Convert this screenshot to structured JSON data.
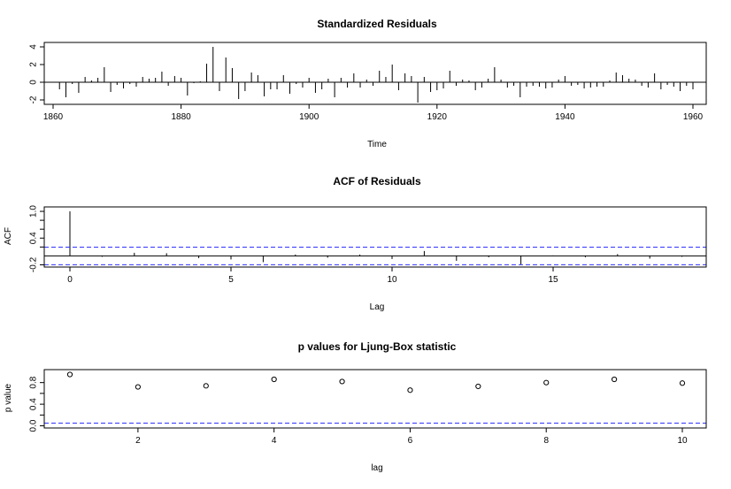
{
  "chart_data": [
    {
      "type": "line",
      "style": "vertical-lines (type='h')",
      "title": "Standardized Residuals",
      "xlabel": "Time",
      "ylabel": "",
      "xlim": [
        1860,
        1960
      ],
      "ylim": [
        -2.5,
        4.5
      ],
      "xticks": [
        1860,
        1880,
        1900,
        1920,
        1940,
        1960
      ],
      "yticks": [
        -2,
        0,
        2,
        4
      ],
      "reference_line": 0,
      "x_start": 1861,
      "x_step": 1,
      "values": [
        -0.8,
        -1.7,
        -0.2,
        -1.2,
        0.6,
        0.2,
        0.5,
        1.7,
        -1.1,
        -0.3,
        -0.7,
        -0.2,
        -0.5,
        0.6,
        0.4,
        0.5,
        1.2,
        -0.4,
        0.7,
        0.5,
        -1.5,
        -0.1,
        0.1,
        2.1,
        4.0,
        -1.0,
        2.8,
        1.6,
        -1.9,
        -1.0,
        1.1,
        0.8,
        -1.6,
        -0.8,
        -0.8,
        0.8,
        -1.3,
        -0.2,
        -0.6,
        0.5,
        -1.2,
        -0.8,
        0.4,
        -1.7,
        0.5,
        -0.6,
        1.0,
        -0.6,
        0.3,
        -0.4,
        1.3,
        0.6,
        2.0,
        -0.9,
        1.0,
        0.7,
        -2.3,
        0.6,
        -1.1,
        -0.9,
        -0.7,
        1.3,
        -0.4,
        0.3,
        0.2,
        -0.9,
        -0.6,
        0.4,
        1.7,
        0.3,
        -0.6,
        -0.4,
        -1.7,
        -0.5,
        -0.4,
        -0.5,
        -0.7,
        -0.6,
        0.3,
        0.7,
        -0.4,
        -0.3,
        -0.7,
        -0.6,
        -0.5,
        -0.5,
        0.2,
        1.1,
        0.8,
        0.4,
        0.3,
        -0.4,
        -0.6,
        1.0,
        -0.8,
        -0.3,
        -0.5,
        -1.0,
        -0.4,
        -0.8
      ],
      "grid": false,
      "colors": {
        "series": "#000000",
        "reference": "#000000"
      }
    },
    {
      "type": "bar",
      "style": "ACF spikes",
      "title": "ACF of Residuals",
      "xlabel": "Lag",
      "ylabel": "ACF",
      "xlim": [
        -1,
        19.3
      ],
      "ylim": [
        -0.25,
        1.1
      ],
      "xticks": [
        0,
        5,
        10,
        15
      ],
      "yticks": [
        -0.2,
        0.2,
        0.4,
        0.6,
        0.8,
        1.0
      ],
      "ytick_labels": [
        "-0.2",
        "0.4",
        "1.0"
      ],
      "lags": [
        0,
        1,
        2,
        3,
        4,
        5,
        6,
        7,
        8,
        9,
        10,
        11,
        12,
        13,
        14,
        15,
        16,
        17,
        18,
        19
      ],
      "values": [
        1.0,
        -0.02,
        0.07,
        0.06,
        -0.05,
        -0.08,
        -0.14,
        0.03,
        -0.04,
        0.03,
        -0.07,
        0.11,
        -0.11,
        -0.03,
        -0.19,
        0.01,
        -0.03,
        0.04,
        -0.06,
        -0.02
      ],
      "confidence_band": [
        -0.197,
        0.197
      ],
      "grid": false,
      "colors": {
        "series": "#000000",
        "confidence": "#3333ff"
      }
    },
    {
      "type": "scatter",
      "title": "p values for Ljung-Box statistic",
      "xlabel": "lag",
      "ylabel": "p value",
      "xlim": [
        0.6,
        10.4
      ],
      "ylim": [
        -0.04,
        1.04
      ],
      "xticks": [
        2,
        4,
        6,
        8,
        10
      ],
      "yticks": [
        0.0,
        0.2,
        0.4,
        0.6,
        0.8
      ],
      "ytick_labels": [
        "0.0",
        "0.4",
        "0.8"
      ],
      "x": [
        1,
        2,
        3,
        4,
        5,
        6,
        7,
        8,
        9,
        10
      ],
      "y": [
        0.95,
        0.72,
        0.74,
        0.86,
        0.82,
        0.66,
        0.73,
        0.8,
        0.86,
        0.79
      ],
      "reference_line": 0.05,
      "grid": false,
      "colors": {
        "points": "#000000",
        "reference": "#3333ff"
      }
    }
  ]
}
